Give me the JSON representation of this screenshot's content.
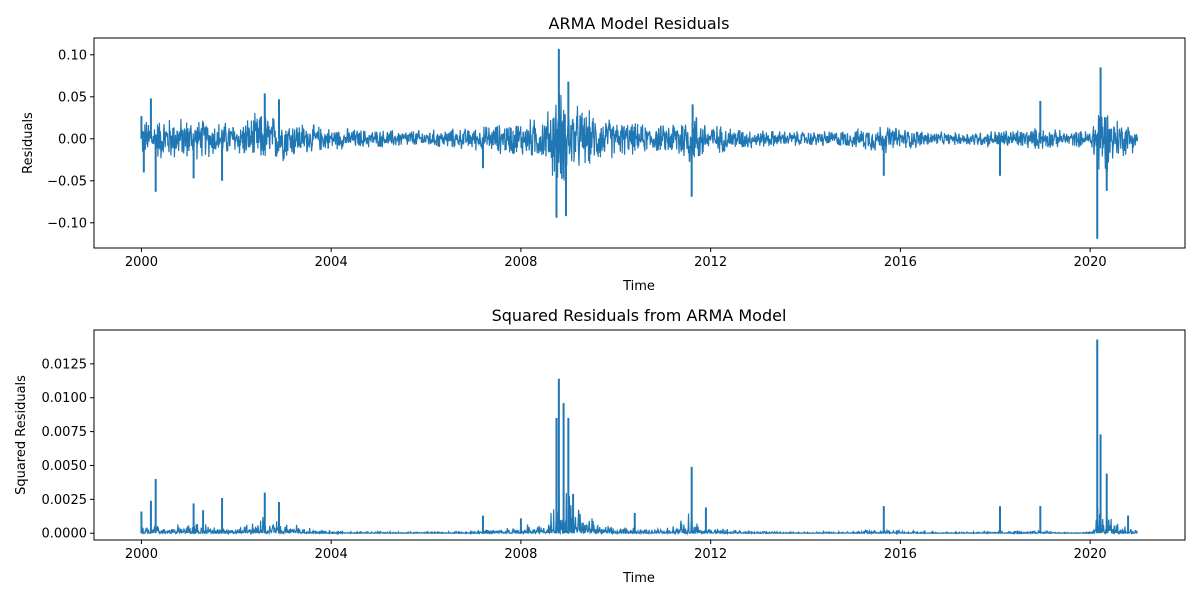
{
  "colors": {
    "line": "#1f77b4",
    "axis": "#000000",
    "background": "#ffffff"
  },
  "chart_data": [
    {
      "type": "line",
      "title": "ARMA Model Residuals",
      "xlabel": "Time",
      "ylabel": "Residuals",
      "xlim": [
        1999.0,
        2022.0
      ],
      "ylim": [
        -0.13,
        0.12
      ],
      "xticks": [
        2000,
        2004,
        2008,
        2012,
        2016,
        2020
      ],
      "xtick_labels": [
        "2000",
        "2004",
        "2008",
        "2012",
        "2016",
        "2020"
      ],
      "yticks": [
        -0.1,
        -0.05,
        0.0,
        0.05,
        0.1
      ],
      "ytick_labels": [
        "−0.10",
        "−0.05",
        "0.00",
        "0.05",
        "0.10"
      ],
      "grid": false,
      "series": [
        {
          "name": "Residuals",
          "x_range": [
            2000.0,
            2021.0
          ],
          "band_x": [
            2000.0,
            2000.5,
            2001.0,
            2001.5,
            2002.0,
            2002.5,
            2003.0,
            2003.5,
            2004.0,
            2005.0,
            2006.0,
            2007.0,
            2007.5,
            2008.0,
            2008.5,
            2008.8,
            2009.0,
            2009.5,
            2010.0,
            2010.5,
            2011.0,
            2011.6,
            2012.0,
            2013.0,
            2014.0,
            2015.0,
            2015.6,
            2016.0,
            2017.0,
            2018.0,
            2019.0,
            2019.5,
            2020.0,
            2020.2,
            2020.5,
            2021.0
          ],
          "band_amplitude": [
            0.025,
            0.03,
            0.028,
            0.025,
            0.022,
            0.035,
            0.03,
            0.02,
            0.015,
            0.012,
            0.012,
            0.015,
            0.02,
            0.025,
            0.03,
            0.07,
            0.05,
            0.035,
            0.025,
            0.02,
            0.018,
            0.04,
            0.02,
            0.012,
            0.01,
            0.012,
            0.02,
            0.015,
            0.008,
            0.012,
            0.015,
            0.01,
            0.012,
            0.06,
            0.03,
            0.015
          ],
          "spikes": [
            {
              "x": 2000.0,
              "y": 0.027
            },
            {
              "x": 2000.05,
              "y": -0.04
            },
            {
              "x": 2000.2,
              "y": 0.048
            },
            {
              "x": 2000.3,
              "y": -0.063
            },
            {
              "x": 2001.1,
              "y": -0.047
            },
            {
              "x": 2001.7,
              "y": -0.05
            },
            {
              "x": 2002.6,
              "y": 0.054
            },
            {
              "x": 2002.9,
              "y": 0.047
            },
            {
              "x": 2007.2,
              "y": -0.035
            },
            {
              "x": 2008.8,
              "y": 0.107
            },
            {
              "x": 2008.75,
              "y": -0.094
            },
            {
              "x": 2008.95,
              "y": -0.092
            },
            {
              "x": 2009.0,
              "y": 0.068
            },
            {
              "x": 2011.6,
              "y": -0.069
            },
            {
              "x": 2011.62,
              "y": 0.041
            },
            {
              "x": 2015.65,
              "y": -0.044
            },
            {
              "x": 2018.1,
              "y": -0.044
            },
            {
              "x": 2018.95,
              "y": 0.045
            },
            {
              "x": 2020.15,
              "y": -0.119
            },
            {
              "x": 2020.22,
              "y": 0.085
            },
            {
              "x": 2020.35,
              "y": -0.062
            }
          ]
        }
      ]
    },
    {
      "type": "line",
      "title": "Squared Residuals from ARMA Model",
      "xlabel": "Time",
      "ylabel": "Squared Residuals",
      "xlim": [
        1999.0,
        2022.0
      ],
      "ylim": [
        -0.0005,
        0.015
      ],
      "xticks": [
        2000,
        2004,
        2008,
        2012,
        2016,
        2020
      ],
      "xtick_labels": [
        "2000",
        "2004",
        "2008",
        "2012",
        "2016",
        "2020"
      ],
      "yticks": [
        0.0,
        0.0025,
        0.005,
        0.0075,
        0.01,
        0.0125
      ],
      "ytick_labels": [
        "0.0000",
        "0.0025",
        "0.0050",
        "0.0075",
        "0.0100",
        "0.0125"
      ],
      "grid": false,
      "series": [
        {
          "name": "Squared Residuals",
          "x_range": [
            2000.0,
            2021.0
          ],
          "spikes": [
            {
              "x": 2000.0,
              "y": 0.0016
            },
            {
              "x": 2000.2,
              "y": 0.0024
            },
            {
              "x": 2000.3,
              "y": 0.004
            },
            {
              "x": 2001.1,
              "y": 0.0022
            },
            {
              "x": 2001.3,
              "y": 0.0017
            },
            {
              "x": 2001.7,
              "y": 0.0026
            },
            {
              "x": 2002.6,
              "y": 0.003
            },
            {
              "x": 2002.9,
              "y": 0.0023
            },
            {
              "x": 2007.2,
              "y": 0.0013
            },
            {
              "x": 2008.0,
              "y": 0.0011
            },
            {
              "x": 2008.75,
              "y": 0.0085
            },
            {
              "x": 2008.8,
              "y": 0.0114
            },
            {
              "x": 2008.9,
              "y": 0.0096
            },
            {
              "x": 2009.0,
              "y": 0.0085
            },
            {
              "x": 2009.1,
              "y": 0.0029
            },
            {
              "x": 2010.4,
              "y": 0.0015
            },
            {
              "x": 2011.6,
              "y": 0.0049
            },
            {
              "x": 2011.9,
              "y": 0.0019
            },
            {
              "x": 2015.65,
              "y": 0.002
            },
            {
              "x": 2018.1,
              "y": 0.002
            },
            {
              "x": 2018.95,
              "y": 0.002
            },
            {
              "x": 2020.15,
              "y": 0.0143
            },
            {
              "x": 2020.22,
              "y": 0.0073
            },
            {
              "x": 2020.35,
              "y": 0.0044
            },
            {
              "x": 2020.8,
              "y": 0.0013
            }
          ]
        }
      ]
    }
  ]
}
